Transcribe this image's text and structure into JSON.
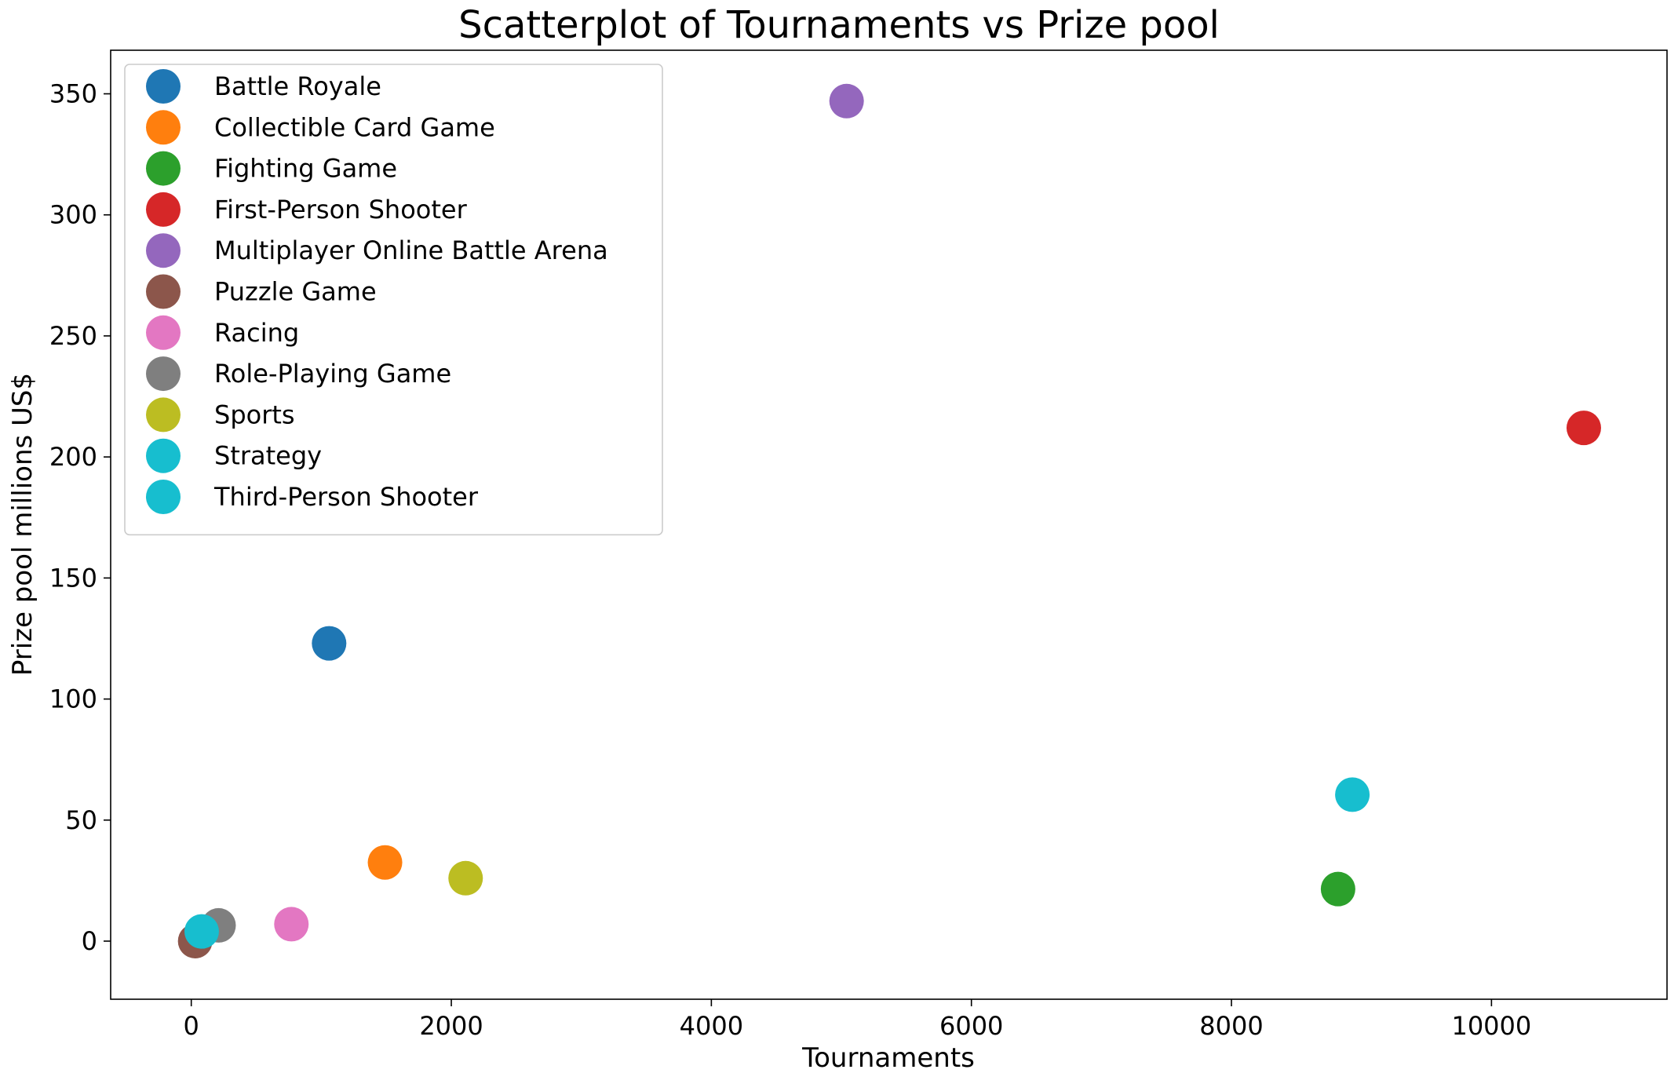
{
  "chart_data": {
    "type": "scatter",
    "title": "Scatterplot of Tournaments vs Prize pool",
    "xlabel": "Tournaments",
    "ylabel": "Prize pool millions US$",
    "xlim": [
      -620,
      11350
    ],
    "ylim": [
      -24,
      368
    ],
    "xticks": [
      0,
      2000,
      4000,
      6000,
      8000,
      10000
    ],
    "yticks": [
      0,
      50,
      100,
      150,
      200,
      250,
      300,
      350
    ],
    "grid": false,
    "legend_position": "upper-left",
    "series": [
      {
        "name": "Battle Royale",
        "color": "#1f77b4",
        "points": [
          {
            "x": 1060,
            "y": 123
          }
        ]
      },
      {
        "name": "Collectible Card Game",
        "color": "#ff7f0e",
        "points": [
          {
            "x": 1490,
            "y": 32.5
          }
        ]
      },
      {
        "name": "Fighting Game",
        "color": "#2ca02c",
        "points": [
          {
            "x": 8820,
            "y": 21.5
          }
        ]
      },
      {
        "name": "First-Person Shooter",
        "color": "#d62728",
        "points": [
          {
            "x": 10710,
            "y": 212
          }
        ]
      },
      {
        "name": "Multiplayer Online Battle Arena",
        "color": "#9467bd",
        "points": [
          {
            "x": 5040,
            "y": 347
          }
        ]
      },
      {
        "name": "Puzzle Game",
        "color": "#8c564b",
        "points": [
          {
            "x": 30,
            "y": 0
          }
        ]
      },
      {
        "name": "Racing",
        "color": "#e377c2",
        "points": [
          {
            "x": 770,
            "y": 7
          }
        ]
      },
      {
        "name": "Role-Playing Game",
        "color": "#7f7f7f",
        "points": [
          {
            "x": 210,
            "y": 6.5
          }
        ]
      },
      {
        "name": "Sports",
        "color": "#bcbd22",
        "points": [
          {
            "x": 2110,
            "y": 26
          }
        ]
      },
      {
        "name": "Strategy",
        "color": "#17becf",
        "points": [
          {
            "x": 8930,
            "y": 60.5
          }
        ]
      },
      {
        "name": "Third-Person Shooter",
        "color": "#17becf",
        "points": [
          {
            "x": 80,
            "y": 4
          }
        ]
      }
    ]
  }
}
